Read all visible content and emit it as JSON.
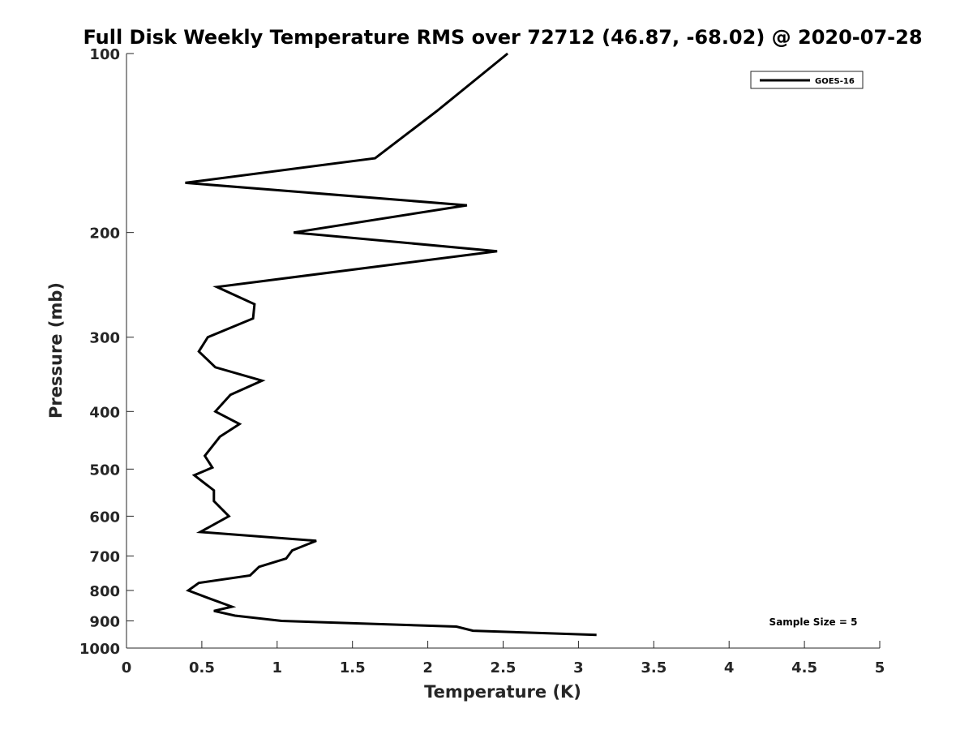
{
  "chart_data": {
    "type": "line",
    "title": "Full Disk Weekly Temperature RMS over 72712 (46.87, -68.02) @ 2020-07-28",
    "xlabel": "Temperature (K)",
    "ylabel": "Pressure (mb)",
    "xlim": [
      0,
      5
    ],
    "ylim": [
      100,
      1000
    ],
    "y_scale": "log",
    "y_reversed": true,
    "x_ticks": [
      "0",
      "0.5",
      "1",
      "1.5",
      "2",
      "2.5",
      "3",
      "3.5",
      "4",
      "4.5",
      "5"
    ],
    "y_ticks": [
      "100",
      "200",
      "300",
      "400",
      "500",
      "600",
      "700",
      "800",
      "900",
      "1000"
    ],
    "grid": false,
    "legend_position": "top-right",
    "annotation": "Sample Size = 5",
    "series": [
      {
        "name": "GOES-16",
        "color": "#000000",
        "points": [
          [
            2.53,
            100
          ],
          [
            2.06,
            125
          ],
          [
            1.65,
            150
          ],
          [
            0.39,
            165
          ],
          [
            2.26,
            180
          ],
          [
            1.11,
            200
          ],
          [
            2.46,
            215
          ],
          [
            0.6,
            247
          ],
          [
            0.85,
            264
          ],
          [
            0.84,
            279
          ],
          [
            0.54,
            300
          ],
          [
            0.48,
            317
          ],
          [
            0.59,
            337
          ],
          [
            0.9,
            355
          ],
          [
            0.69,
            375
          ],
          [
            0.59,
            400
          ],
          [
            0.75,
            420
          ],
          [
            0.62,
            441
          ],
          [
            0.52,
            475
          ],
          [
            0.57,
            497
          ],
          [
            0.45,
            512
          ],
          [
            0.58,
            543
          ],
          [
            0.58,
            566
          ],
          [
            0.68,
            600
          ],
          [
            0.49,
            638
          ],
          [
            1.26,
            660
          ],
          [
            1.1,
            685
          ],
          [
            1.06,
            707
          ],
          [
            0.88,
            730
          ],
          [
            0.82,
            755
          ],
          [
            0.48,
            777
          ],
          [
            0.41,
            800
          ],
          [
            0.55,
            825
          ],
          [
            0.7,
            852
          ],
          [
            0.58,
            866
          ],
          [
            0.72,
            882
          ],
          [
            1.03,
            900
          ],
          [
            2.19,
            920
          ],
          [
            2.3,
            935
          ],
          [
            3.12,
            950
          ]
        ]
      }
    ]
  }
}
